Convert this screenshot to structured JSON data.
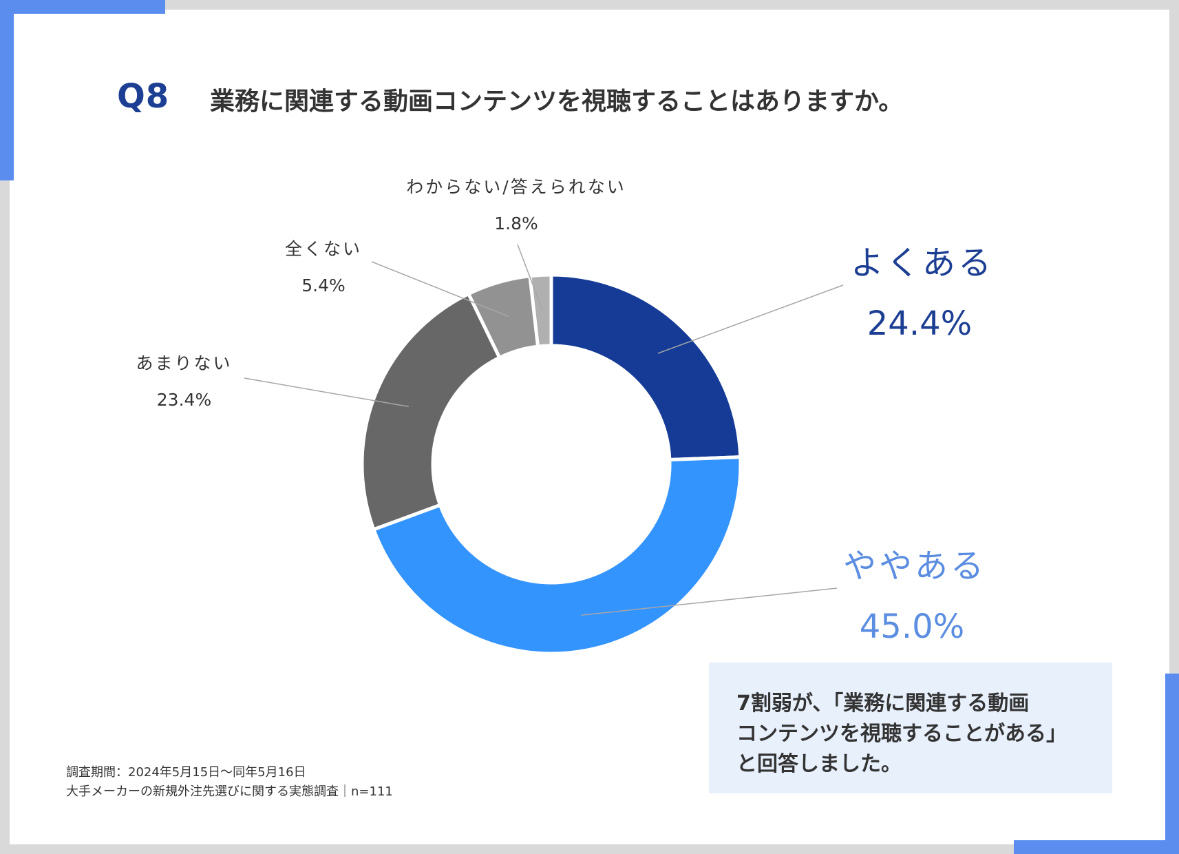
{
  "question": {
    "number": "Q8",
    "text": "業務に関連する動画コンテンツを視聴することはありますか。"
  },
  "colors": {
    "brand": "#1c3f94",
    "accent": "#5b8def",
    "summary_bg": "#e8f0fc"
  },
  "chart_data": {
    "type": "pie",
    "donut": true,
    "legend": "none",
    "slices": [
      {
        "label": "よくある",
        "value": 24.4,
        "value_label": "24.4%",
        "color": "#153b96",
        "label_color": "#1c3f94"
      },
      {
        "label": "ややある",
        "value": 45.0,
        "value_label": "45.0%",
        "color": "#3494fd",
        "label_color": "#5b8de0"
      },
      {
        "label": "あまりない",
        "value": 23.4,
        "value_label": "23.4%",
        "color": "#676767",
        "label_color": "#333333"
      },
      {
        "label": "全くない",
        "value": 5.4,
        "value_label": "5.4%",
        "color": "#929292",
        "label_color": "#333333"
      },
      {
        "label": "わからない/答えられない",
        "value": 1.8,
        "value_label": "1.8%",
        "color": "#b0b0b0",
        "label_color": "#333333"
      }
    ]
  },
  "summary": {
    "text": "7割弱が、「業務に関連する動画\nコンテンツを視聴することがある」\nと回答しました。"
  },
  "footnote": {
    "line1": "調査期間：2024年5月15日〜同年5月16日",
    "line2": "大手メーカーの新規外注先選びに関する実態調査｜n=111"
  }
}
